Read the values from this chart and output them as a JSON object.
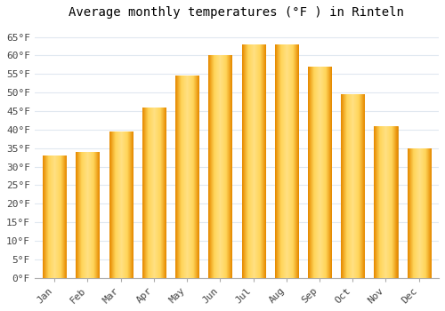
{
  "months": [
    "Jan",
    "Feb",
    "Mar",
    "Apr",
    "May",
    "Jun",
    "Jul",
    "Aug",
    "Sep",
    "Oct",
    "Nov",
    "Dec"
  ],
  "values": [
    33,
    34,
    39.5,
    46,
    54.5,
    60,
    63,
    63,
    57,
    49.5,
    41,
    35
  ],
  "bar_color_center": "#FFD54F",
  "bar_color_edge": "#FFA000",
  "title": "Average monthly temperatures (°F ) in Rinteln",
  "ylim": [
    0,
    68
  ],
  "yticks": [
    0,
    5,
    10,
    15,
    20,
    25,
    30,
    35,
    40,
    45,
    50,
    55,
    60,
    65
  ],
  "ytick_labels": [
    "0°F",
    "5°F",
    "10°F",
    "15°F",
    "20°F",
    "25°F",
    "30°F",
    "35°F",
    "40°F",
    "45°F",
    "50°F",
    "55°F",
    "60°F",
    "65°F"
  ],
  "background_color": "#ffffff",
  "grid_color": "#e0e8f0",
  "title_fontsize": 10,
  "tick_fontsize": 8,
  "bar_width": 0.7
}
